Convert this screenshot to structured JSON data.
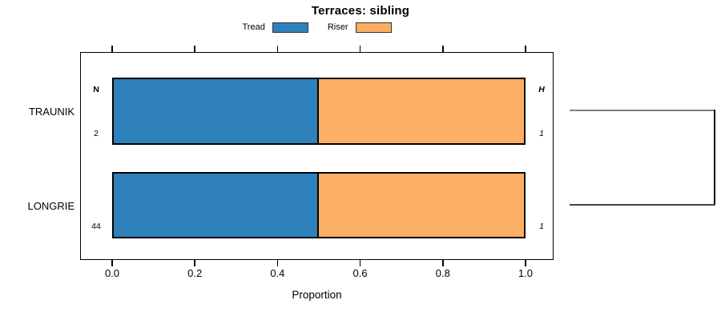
{
  "chart_data": {
    "type": "bar",
    "orientation": "horizontal-stacked",
    "title": "Terraces: sibling",
    "categories": [
      "TRAUNIK",
      "LONGRIE"
    ],
    "series": [
      {
        "name": "Tread",
        "color": "#2e81bb",
        "values": [
          0.5,
          0.5
        ]
      },
      {
        "name": "Riser",
        "color": "#fcae64",
        "values": [
          0.5,
          0.5
        ]
      }
    ],
    "annotations": {
      "left_header": "N",
      "right_header": "H",
      "counts": [
        "2",
        "44"
      ],
      "heights": [
        "1",
        "1"
      ]
    },
    "xlabel": "Proportion",
    "xlim": [
      0,
      1
    ],
    "xticks": [
      0.0,
      0.2,
      0.4,
      0.6,
      0.8,
      1.0
    ],
    "xtick_labels": [
      "0.0",
      "0.2",
      "0.4",
      "0.6",
      "0.8",
      "1.0"
    ],
    "legend_position": "top-center",
    "grid": false,
    "dendrogram": {
      "joins": [
        [
          "TRAUNIK",
          "LONGRIE"
        ]
      ],
      "line_colors": {
        "top": "#808080",
        "vertical": "#000000",
        "bottom": "#444444"
      }
    }
  }
}
